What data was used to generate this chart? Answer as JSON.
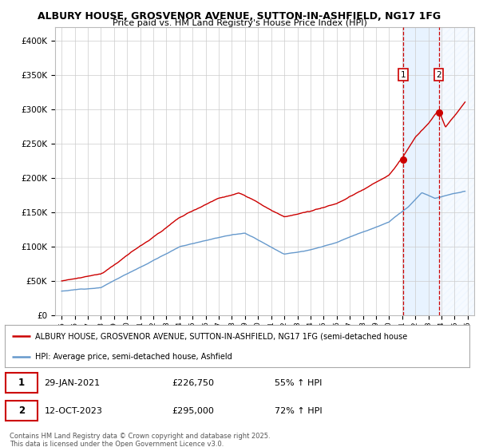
{
  "title_line1": "ALBURY HOUSE, GROSVENOR AVENUE, SUTTON-IN-ASHFIELD, NG17 1FG",
  "title_line2": "Price paid vs. HM Land Registry's House Price Index (HPI)",
  "legend_label1": "ALBURY HOUSE, GROSVENOR AVENUE, SUTTON-IN-ASHFIELD, NG17 1FG (semi-detached house",
  "legend_label2": "HPI: Average price, semi-detached house, Ashfield",
  "footer": "Contains HM Land Registry data © Crown copyright and database right 2025.\nThis data is licensed under the Open Government Licence v3.0.",
  "transaction1_date": "29-JAN-2021",
  "transaction1_price": "£226,750",
  "transaction1_hpi": "55% ↑ HPI",
  "transaction2_date": "12-OCT-2023",
  "transaction2_price": "£295,000",
  "transaction2_hpi": "72% ↑ HPI",
  "red_color": "#cc0000",
  "blue_color": "#6699cc",
  "vline1_x": 2021.08,
  "vline2_x": 2023.79,
  "ylim_min": 0,
  "ylim_max": 420000,
  "xlim_min": 1994.5,
  "xlim_max": 2026.5,
  "background_color": "#ffffff",
  "grid_color": "#cccccc",
  "shade_color": "#ddeeff"
}
